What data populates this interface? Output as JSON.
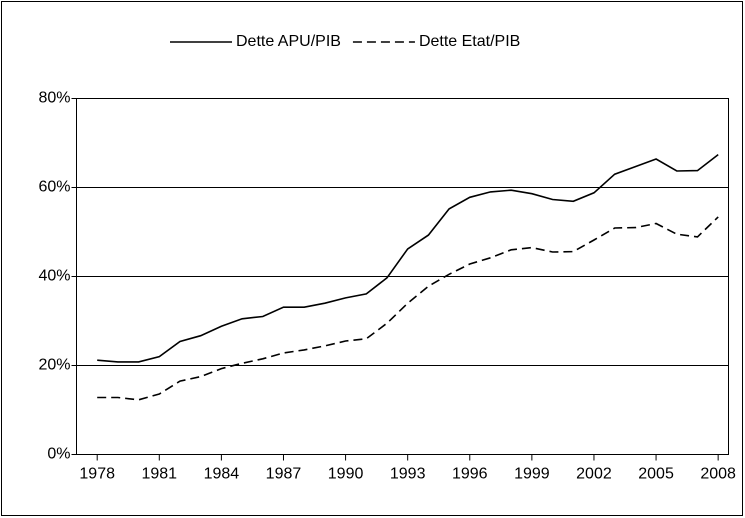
{
  "chart_data": {
    "type": "line",
    "x": [
      1978,
      1979,
      1980,
      1981,
      1982,
      1983,
      1984,
      1985,
      1986,
      1987,
      1988,
      1989,
      1990,
      1991,
      1992,
      1993,
      1994,
      1995,
      1996,
      1997,
      1998,
      1999,
      2000,
      2001,
      2002,
      2003,
      2004,
      2005,
      2006,
      2007,
      2008
    ],
    "series": [
      {
        "name": "Dette APU/PIB",
        "color": "#000000",
        "dash": "solid",
        "values": [
          21.2,
          20.8,
          20.8,
          22.0,
          25.4,
          26.7,
          28.8,
          30.5,
          31.0,
          33.1,
          33.1,
          34.0,
          35.2,
          36.1,
          39.7,
          46.2,
          49.3,
          55.2,
          57.8,
          59.0,
          59.4,
          58.6,
          57.3,
          56.9,
          58.8,
          63.0,
          64.7,
          66.4,
          63.7,
          63.8,
          67.4
        ]
      },
      {
        "name": "Dette Etat/PIB",
        "color": "#000000",
        "dash": "dashed",
        "values": [
          12.8,
          12.8,
          12.3,
          13.6,
          16.5,
          17.5,
          19.3,
          20.5,
          21.5,
          22.8,
          23.5,
          24.4,
          25.5,
          26.0,
          29.5,
          34.0,
          37.8,
          40.5,
          42.8,
          44.2,
          46.0,
          46.5,
          45.5,
          45.6,
          48.2,
          50.9,
          51.0,
          51.9,
          49.5,
          48.9,
          53.4
        ]
      }
    ],
    "xlim": [
      1977,
      2008.5
    ],
    "xticks": [
      1978,
      1981,
      1984,
      1987,
      1990,
      1993,
      1996,
      1999,
      2002,
      2005,
      2008
    ],
    "ylim": [
      0,
      80
    ],
    "yticks": [
      {
        "value": 0,
        "label": "0%"
      },
      {
        "value": 20,
        "label": "20%"
      },
      {
        "value": 40,
        "label": "40%"
      },
      {
        "value": 60,
        "label": "60%"
      },
      {
        "value": 80,
        "label": "80%"
      }
    ],
    "grid": true
  }
}
